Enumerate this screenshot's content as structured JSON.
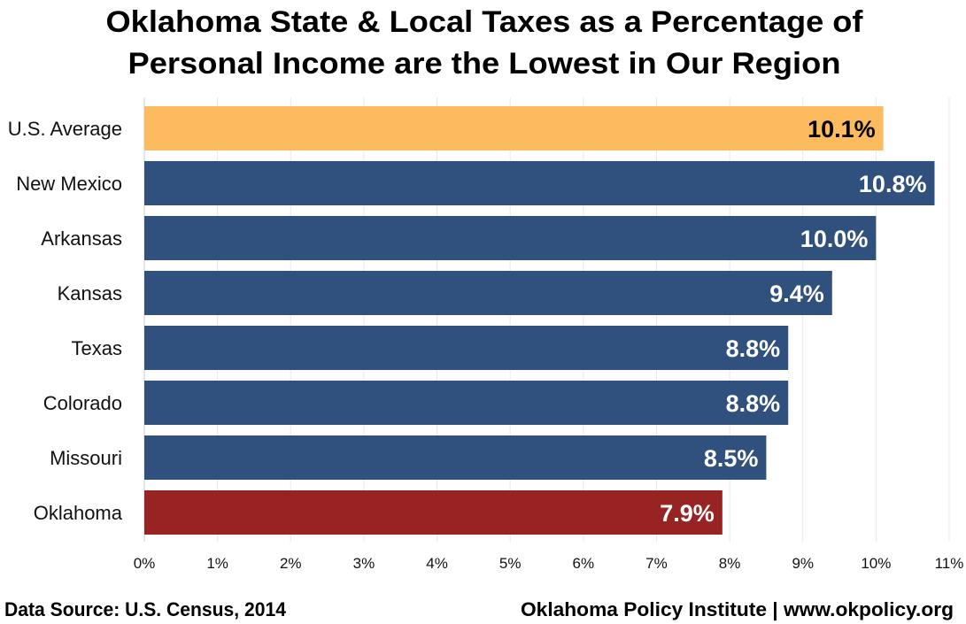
{
  "chart_data": {
    "type": "bar",
    "orientation": "horizontal",
    "title_lines": [
      "Oklahoma State & Local Taxes as a Percentage of",
      "Personal Income are the Lowest in Our Region"
    ],
    "categories": [
      "U.S. Average",
      "New Mexico",
      "Arkansas",
      "Kansas",
      "Texas",
      "Colorado",
      "Missouri",
      "Oklahoma"
    ],
    "values": [
      10.1,
      10.8,
      10.0,
      9.4,
      8.8,
      8.8,
      8.5,
      7.9
    ],
    "value_labels": [
      "10.1%",
      "10.8%",
      "10.0%",
      "9.4%",
      "8.8%",
      "8.8%",
      "8.5%",
      "7.9%"
    ],
    "bar_colors": [
      "#FDBB5F",
      "#30507E",
      "#30507E",
      "#30507E",
      "#30507E",
      "#30507E",
      "#30507E",
      "#982323"
    ],
    "label_colors": [
      "#000000",
      "#FFFFFF",
      "#FFFFFF",
      "#FFFFFF",
      "#FFFFFF",
      "#FFFFFF",
      "#FFFFFF",
      "#FFFFFF"
    ],
    "xlim": [
      0,
      11
    ],
    "xticks": [
      "0%",
      "1%",
      "2%",
      "3%",
      "4%",
      "5%",
      "6%",
      "7%",
      "8%",
      "9%",
      "10%",
      "11%"
    ],
    "grid": true,
    "xlabel": "",
    "ylabel": ""
  },
  "footer": {
    "source": "Data Source: U.S. Census, 2014",
    "credit": "Oklahoma Policy Institute | www.okpolicy.org"
  }
}
